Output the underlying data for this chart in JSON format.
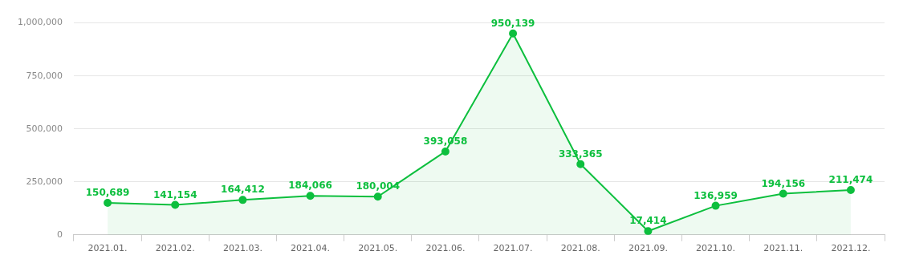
{
  "chart_data": {
    "type": "area",
    "categories": [
      "2021.01.",
      "2021.02.",
      "2021.03.",
      "2021.04.",
      "2021.05.",
      "2021.06.",
      "2021.07.",
      "2021.08.",
      "2021.09.",
      "2021.10.",
      "2021.11.",
      "2021.12."
    ],
    "series": [
      {
        "color": "#0dbf3e",
        "values": [
          150689,
          141154,
          164412,
          184066,
          180004,
          393058,
          950139,
          333365,
          17414,
          136959,
          194156,
          211474
        ],
        "value_labels": [
          "150,689",
          "141,154",
          "164,412",
          "184,066",
          "180,004",
          "393,058",
          "950,139",
          "333,365",
          "17,414",
          "136,959",
          "194,156",
          "211,474"
        ]
      }
    ],
    "ylim": [
      0,
      1000000
    ],
    "yticks": [
      0,
      {
        "value": 250000,
        "label": "250,000"
      },
      {
        "value": 500000,
        "label": "500,000"
      },
      {
        "value": 750000,
        "label": "750,000"
      },
      {
        "value": 1000000,
        "label": "1,000,000"
      }
    ],
    "grid": "y",
    "marker": "circle",
    "legend": false
  }
}
